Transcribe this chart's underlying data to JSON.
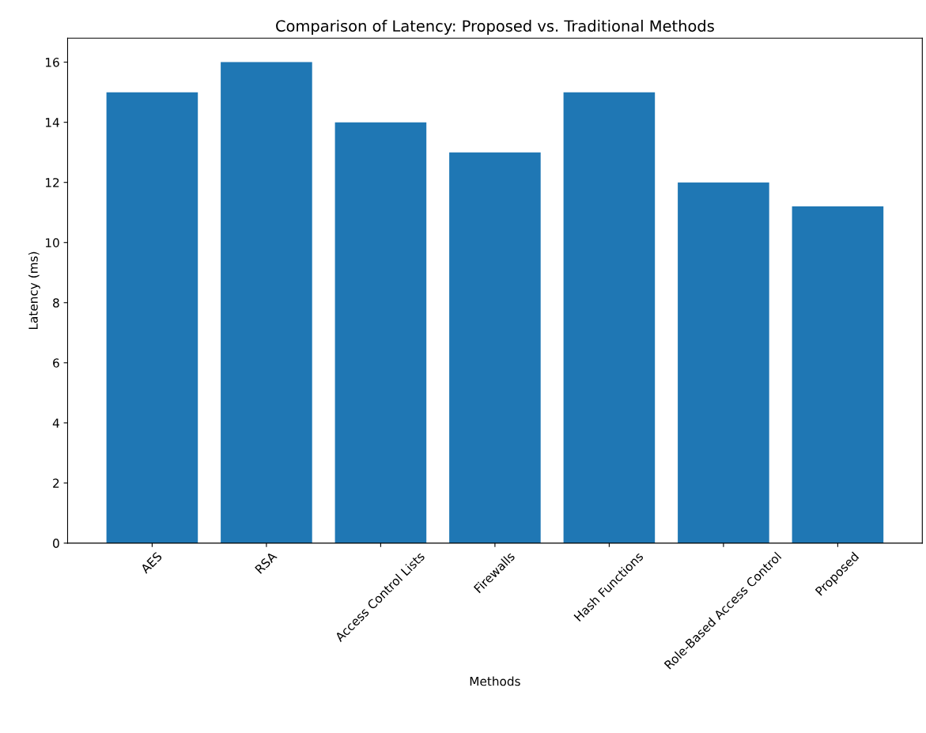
{
  "chart_data": {
    "type": "bar",
    "title": "Comparison of Latency: Proposed vs. Traditional Methods",
    "xlabel": "Methods",
    "ylabel": "Latency (ms)",
    "categories": [
      "AES",
      "RSA",
      "Access Control Lists",
      "Firewalls",
      "Hash Functions",
      "Role-Based Access Control",
      "Proposed"
    ],
    "values": [
      15,
      16,
      14,
      13,
      15,
      12,
      11.2
    ],
    "color": "#1f77b4",
    "ylim": [
      0,
      16.8
    ],
    "yticks": [
      0,
      2,
      4,
      6,
      8,
      10,
      12,
      14,
      16
    ],
    "grid": false,
    "legend": false
  }
}
